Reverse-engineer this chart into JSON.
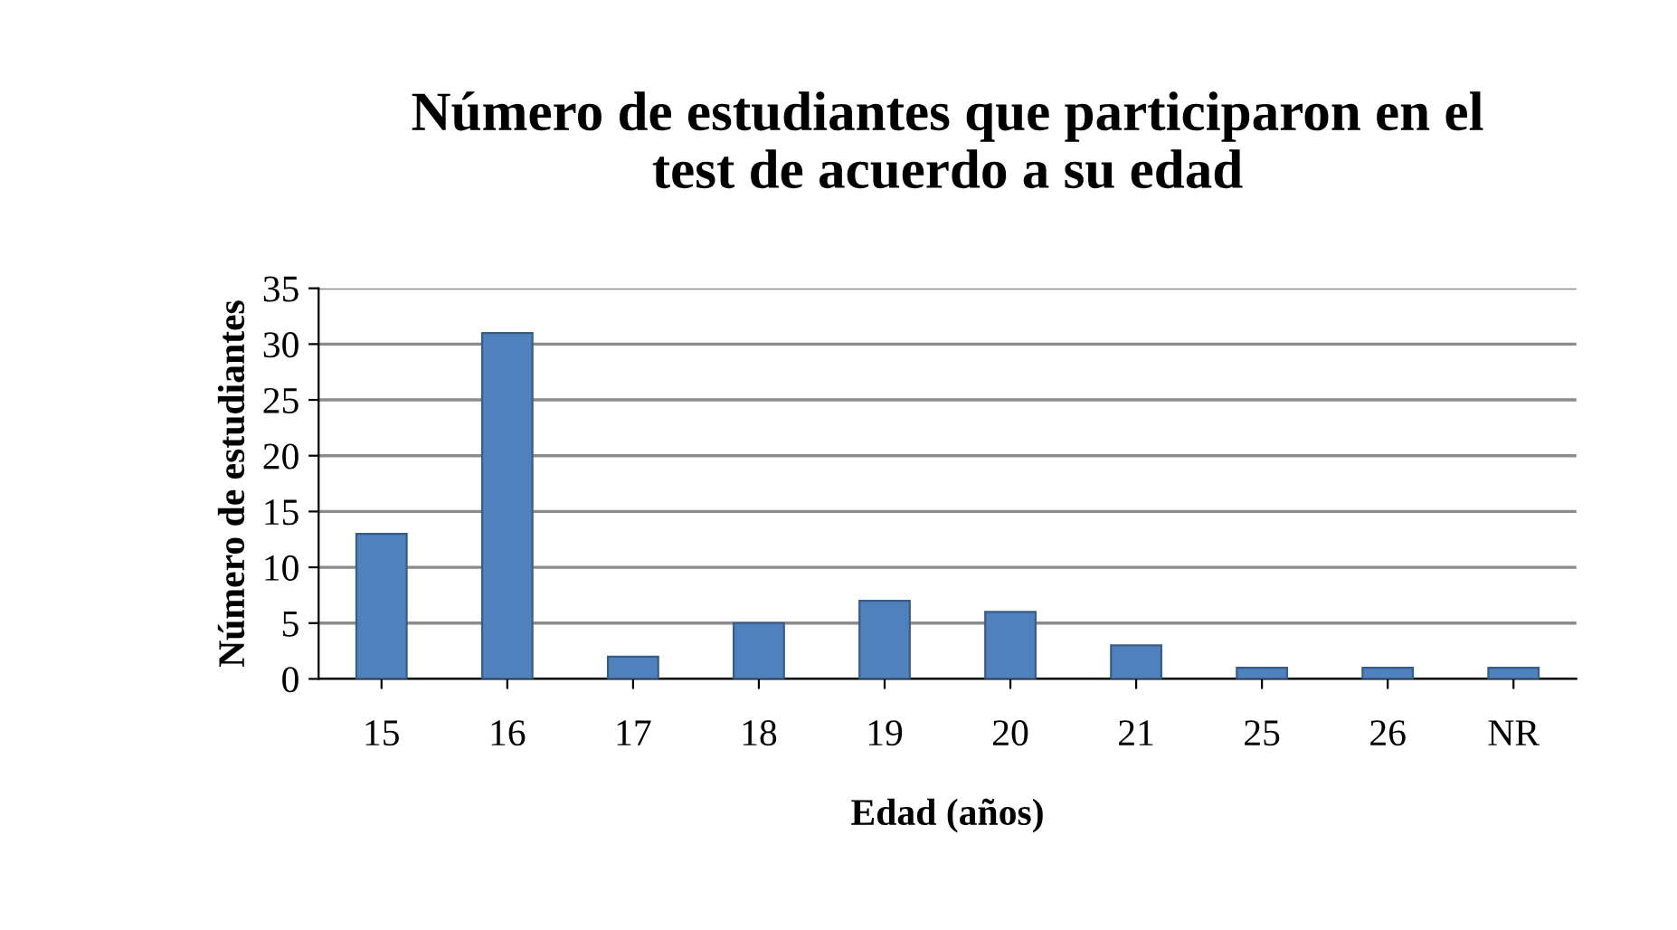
{
  "chart_data": {
    "type": "bar",
    "title": "Número de estudiantes que participaron en el\ntest de acuerdo a su edad",
    "xlabel": "Edad (años)",
    "ylabel": "Número de estudiantes",
    "categories": [
      "15",
      "16",
      "17",
      "18",
      "19",
      "20",
      "21",
      "25",
      "26",
      "NR"
    ],
    "values": [
      13,
      31,
      2,
      5,
      7,
      6,
      3,
      1,
      1,
      1
    ],
    "color": "#4f81bd",
    "ylim": [
      0,
      35
    ],
    "yticks": [
      0,
      5,
      10,
      15,
      20,
      25,
      30,
      35
    ],
    "grid": "y"
  }
}
